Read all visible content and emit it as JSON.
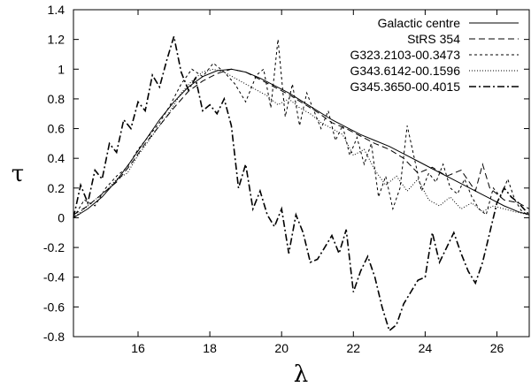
{
  "chart_data": {
    "type": "line",
    "title": "",
    "xlabel": "λ",
    "ylabel": "τ",
    "xlim": [
      14.2,
      26.9
    ],
    "ylim": [
      -0.8,
      1.4
    ],
    "xticks": [
      "16",
      "18",
      "20",
      "22",
      "24",
      "26"
    ],
    "yticks": [
      "-0.8",
      "-0.6",
      "-0.4",
      "-0.2",
      "0",
      "0.2",
      "0.4",
      "0.6",
      "0.8",
      "1",
      "1.2",
      "1.4"
    ],
    "grid": false,
    "legend_position": "top-right",
    "series": [
      {
        "name": "Galactic centre",
        "style": "solid",
        "points": [
          [
            14.2,
            0.0
          ],
          [
            14.6,
            0.06
          ],
          [
            15.0,
            0.14
          ],
          [
            15.4,
            0.25
          ],
          [
            15.8,
            0.38
          ],
          [
            16.2,
            0.52
          ],
          [
            16.6,
            0.66
          ],
          [
            17.0,
            0.78
          ],
          [
            17.4,
            0.88
          ],
          [
            17.8,
            0.95
          ],
          [
            18.2,
            0.99
          ],
          [
            18.6,
            1.0
          ],
          [
            19.0,
            0.98
          ],
          [
            19.4,
            0.94
          ],
          [
            19.8,
            0.89
          ],
          [
            20.2,
            0.84
          ],
          [
            20.6,
            0.78
          ],
          [
            21.0,
            0.72
          ],
          [
            21.4,
            0.66
          ],
          [
            21.8,
            0.61
          ],
          [
            22.2,
            0.56
          ],
          [
            22.6,
            0.52
          ],
          [
            23.0,
            0.48
          ],
          [
            23.4,
            0.43
          ],
          [
            23.8,
            0.38
          ],
          [
            24.2,
            0.33
          ],
          [
            24.6,
            0.28
          ],
          [
            25.0,
            0.23
          ],
          [
            25.4,
            0.18
          ],
          [
            25.8,
            0.13
          ],
          [
            26.2,
            0.08
          ],
          [
            26.6,
            0.04
          ],
          [
            26.9,
            0.02
          ]
        ]
      },
      {
        "name": "StRS 354",
        "style": "dashed",
        "points": [
          [
            14.2,
            0.02
          ],
          [
            14.6,
            0.08
          ],
          [
            15.0,
            0.16
          ],
          [
            15.4,
            0.24
          ],
          [
            15.8,
            0.36
          ],
          [
            16.2,
            0.5
          ],
          [
            16.6,
            0.62
          ],
          [
            17.0,
            0.74
          ],
          [
            17.4,
            0.85
          ],
          [
            17.8,
            0.92
          ],
          [
            18.2,
            0.97
          ],
          [
            18.6,
            1.0
          ],
          [
            19.0,
            0.98
          ],
          [
            19.4,
            0.93
          ],
          [
            19.8,
            0.88
          ],
          [
            20.2,
            0.83
          ],
          [
            20.6,
            0.77
          ],
          [
            21.0,
            0.71
          ],
          [
            21.4,
            0.64
          ],
          [
            21.8,
            0.6
          ],
          [
            22.2,
            0.55
          ],
          [
            22.6,
            0.5
          ],
          [
            23.0,
            0.46
          ],
          [
            23.4,
            0.4
          ],
          [
            23.8,
            0.3
          ],
          [
            24.2,
            0.34
          ],
          [
            24.6,
            0.28
          ],
          [
            25.0,
            0.32
          ],
          [
            25.4,
            0.18
          ],
          [
            25.6,
            0.36
          ],
          [
            25.8,
            0.2
          ],
          [
            26.2,
            0.12
          ],
          [
            26.6,
            0.1
          ],
          [
            26.9,
            0.06
          ]
        ]
      },
      {
        "name": "G323.2103-00.3473",
        "style": "short-dashed",
        "points": [
          [
            14.2,
            0.0
          ],
          [
            14.5,
            0.12
          ],
          [
            14.8,
            0.08
          ],
          [
            15.1,
            0.2
          ],
          [
            15.4,
            0.28
          ],
          [
            15.7,
            0.34
          ],
          [
            16.0,
            0.46
          ],
          [
            16.3,
            0.55
          ],
          [
            16.6,
            0.64
          ],
          [
            16.9,
            0.76
          ],
          [
            17.2,
            0.9
          ],
          [
            17.5,
            1.0
          ],
          [
            17.8,
            0.95
          ],
          [
            18.1,
            1.04
          ],
          [
            18.4,
            0.98
          ],
          [
            18.7,
            0.9
          ],
          [
            19.0,
            0.78
          ],
          [
            19.3,
            0.96
          ],
          [
            19.5,
            1.0
          ],
          [
            19.7,
            0.74
          ],
          [
            19.9,
            1.2
          ],
          [
            20.1,
            0.68
          ],
          [
            20.3,
            0.9
          ],
          [
            20.5,
            0.62
          ],
          [
            20.7,
            0.84
          ],
          [
            20.9,
            0.72
          ],
          [
            21.1,
            0.6
          ],
          [
            21.3,
            0.72
          ],
          [
            21.5,
            0.52
          ],
          [
            21.7,
            0.62
          ],
          [
            21.9,
            0.42
          ],
          [
            22.1,
            0.54
          ],
          [
            22.3,
            0.36
          ],
          [
            22.5,
            0.5
          ],
          [
            22.7,
            0.14
          ],
          [
            22.9,
            0.28
          ],
          [
            23.1,
            0.06
          ],
          [
            23.3,
            0.2
          ],
          [
            23.5,
            0.62
          ],
          [
            23.7,
            0.4
          ],
          [
            23.9,
            0.18
          ],
          [
            24.1,
            0.3
          ],
          [
            24.3,
            0.24
          ],
          [
            24.5,
            0.36
          ],
          [
            24.7,
            0.2
          ],
          [
            24.9,
            0.16
          ],
          [
            25.1,
            0.26
          ],
          [
            25.3,
            0.14
          ],
          [
            25.5,
            0.06
          ],
          [
            25.7,
            0.02
          ],
          [
            25.9,
            0.2
          ],
          [
            26.1,
            0.14
          ],
          [
            26.3,
            0.26
          ],
          [
            26.5,
            0.12
          ],
          [
            26.7,
            0.04
          ],
          [
            26.9,
            0.02
          ]
        ]
      },
      {
        "name": "G343.6142-00.1596",
        "style": "dotted",
        "points": [
          [
            14.2,
            0.0
          ],
          [
            14.5,
            0.06
          ],
          [
            14.8,
            0.12
          ],
          [
            15.1,
            0.18
          ],
          [
            15.4,
            0.26
          ],
          [
            15.7,
            0.3
          ],
          [
            16.0,
            0.42
          ],
          [
            16.3,
            0.52
          ],
          [
            16.6,
            0.62
          ],
          [
            16.9,
            0.72
          ],
          [
            17.2,
            0.84
          ],
          [
            17.5,
            0.92
          ],
          [
            17.8,
            0.98
          ],
          [
            18.1,
            1.0
          ],
          [
            18.4,
            0.98
          ],
          [
            18.7,
            0.94
          ],
          [
            19.0,
            0.9
          ],
          [
            19.3,
            0.86
          ],
          [
            19.6,
            0.82
          ],
          [
            19.9,
            0.76
          ],
          [
            20.2,
            0.8
          ],
          [
            20.5,
            0.74
          ],
          [
            20.8,
            0.7
          ],
          [
            21.1,
            0.64
          ],
          [
            21.4,
            0.6
          ],
          [
            21.7,
            0.56
          ],
          [
            22.0,
            0.42
          ],
          [
            22.3,
            0.46
          ],
          [
            22.6,
            0.32
          ],
          [
            22.9,
            0.22
          ],
          [
            23.2,
            0.28
          ],
          [
            23.5,
            0.18
          ],
          [
            23.8,
            0.26
          ],
          [
            24.1,
            0.12
          ],
          [
            24.4,
            0.08
          ],
          [
            24.7,
            0.14
          ],
          [
            25.0,
            0.06
          ],
          [
            25.3,
            0.1
          ],
          [
            25.6,
            0.04
          ],
          [
            25.9,
            0.08
          ],
          [
            26.2,
            0.06
          ],
          [
            26.5,
            0.04
          ],
          [
            26.9,
            0.02
          ]
        ]
      },
      {
        "name": "G345.3650-00.4015",
        "style": "dash-dot",
        "points": [
          [
            14.2,
            0.0
          ],
          [
            14.4,
            0.22
          ],
          [
            14.6,
            0.1
          ],
          [
            14.8,
            0.32
          ],
          [
            15.0,
            0.26
          ],
          [
            15.2,
            0.5
          ],
          [
            15.4,
            0.44
          ],
          [
            15.6,
            0.66
          ],
          [
            15.8,
            0.6
          ],
          [
            16.0,
            0.78
          ],
          [
            16.2,
            0.72
          ],
          [
            16.4,
            0.96
          ],
          [
            16.6,
            0.88
          ],
          [
            16.8,
            1.06
          ],
          [
            17.0,
            1.22
          ],
          [
            17.2,
            0.98
          ],
          [
            17.4,
            0.86
          ],
          [
            17.6,
            0.94
          ],
          [
            17.8,
            0.72
          ],
          [
            18.0,
            0.76
          ],
          [
            18.2,
            0.7
          ],
          [
            18.4,
            0.8
          ],
          [
            18.6,
            0.62
          ],
          [
            18.8,
            0.2
          ],
          [
            19.0,
            0.36
          ],
          [
            19.2,
            0.06
          ],
          [
            19.4,
            0.18
          ],
          [
            19.6,
            0.02
          ],
          [
            19.8,
            -0.06
          ],
          [
            20.0,
            0.06
          ],
          [
            20.2,
            -0.24
          ],
          [
            20.4,
            0.02
          ],
          [
            20.6,
            -0.1
          ],
          [
            20.8,
            -0.3
          ],
          [
            21.0,
            -0.28
          ],
          [
            21.2,
            -0.2
          ],
          [
            21.4,
            -0.12
          ],
          [
            21.6,
            -0.24
          ],
          [
            21.8,
            -0.08
          ],
          [
            22.0,
            -0.5
          ],
          [
            22.2,
            -0.36
          ],
          [
            22.4,
            -0.26
          ],
          [
            22.6,
            -0.4
          ],
          [
            22.8,
            -0.6
          ],
          [
            23.0,
            -0.76
          ],
          [
            23.2,
            -0.72
          ],
          [
            23.4,
            -0.58
          ],
          [
            23.6,
            -0.5
          ],
          [
            23.8,
            -0.42
          ],
          [
            24.0,
            -0.4
          ],
          [
            24.2,
            -0.1
          ],
          [
            24.4,
            -0.3
          ],
          [
            24.6,
            -0.2
          ],
          [
            24.8,
            -0.1
          ],
          [
            25.0,
            -0.24
          ],
          [
            25.2,
            -0.36
          ],
          [
            25.4,
            -0.44
          ],
          [
            25.6,
            -0.3
          ],
          [
            25.8,
            -0.1
          ],
          [
            26.0,
            0.1
          ],
          [
            26.2,
            0.2
          ],
          [
            26.4,
            0.14
          ],
          [
            26.6,
            0.1
          ],
          [
            26.9,
            0.02
          ]
        ]
      }
    ]
  }
}
